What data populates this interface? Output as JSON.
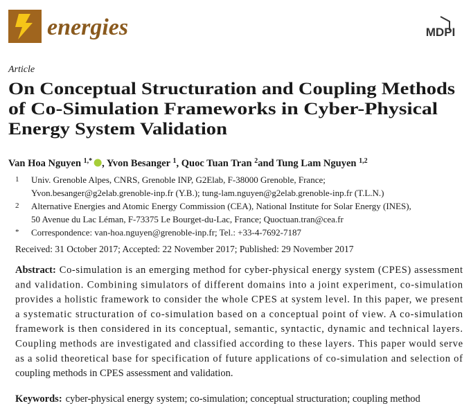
{
  "header": {
    "journal": "energies",
    "publisher": "MDPI"
  },
  "article_type": "Article",
  "title_lines": [
    "On Conceptual Structuration and Coupling Methods",
    "of Co-Simulation Frameworks in Cyber-Physical",
    "Energy System Validation"
  ],
  "authors": [
    {
      "name": "Van Hoa Nguyen",
      "sup": "1,*"
    },
    {
      "name": "Yvon Besanger",
      "sup": "1"
    },
    {
      "name": "Quoc Tuan Tran",
      "sup": "2"
    },
    {
      "name": "Tung Lam Nguyen",
      "sup": "1,2"
    }
  ],
  "author_separators": [
    ",",
    ",",
    "and"
  ],
  "affiliations": [
    {
      "marker": "1",
      "lines": [
        "Univ. Grenoble Alpes, CNRS, Grenoble INP, G2Elab, F-38000 Grenoble, France;",
        "Yvon.besanger@g2elab.grenoble-inp.fr (Y.B.); tung-lam.nguyen@g2elab.grenoble-inp.fr (T.L.N.)"
      ]
    },
    {
      "marker": "2",
      "lines": [
        "Alternative Energies and Atomic Energy Commission (CEA), National Institute for Solar Energy (INES),",
        "50 Avenue du Lac Léman, F-73375 Le Bourget-du-Lac, France; Quoctuan.tran@cea.fr"
      ]
    },
    {
      "marker": "*",
      "lines": [
        "Correspondence: van-hoa.nguyen@grenoble-inp.fr; Tel.: +33-4-7692-7187"
      ]
    }
  ],
  "dates": "Received: 31 October 2017; Accepted: 22 November 2017; Published: 29 November 2017",
  "abstract": {
    "label": "Abstract:",
    "lines": [
      "Co-simulation is an emerging method for cyber-physical energy system (CPES) assessment",
      "and validation. Combining simulators of different domains into a joint experiment, co-simulation",
      "provides a holistic framework to consider the whole CPES at system level. In this paper, we present",
      "a systematic structuration of co-simulation based on a conceptual point of view. A co-simulation",
      "framework is then considered in its conceptual, semantic, syntactic, dynamic and technical layers.",
      "Coupling methods are investigated and classified according to these layers. This paper would serve",
      "as a solid theoretical base for specification of future applications of co-simulation and selection of",
      "coupling methods in CPES assessment and validation."
    ]
  },
  "keywords": {
    "label": "Keywords:",
    "text": "cyber-physical energy system; co-simulation; conceptual structuration; coupling method"
  }
}
